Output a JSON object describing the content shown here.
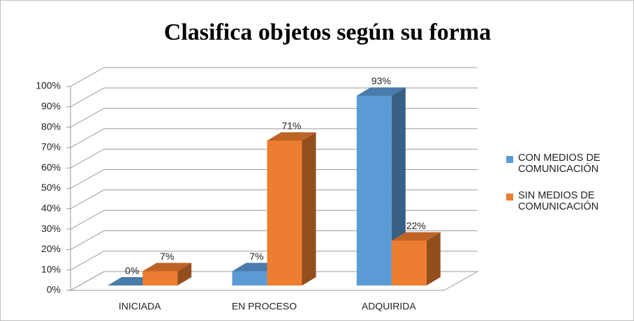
{
  "chart_data": {
    "type": "bar3d",
    "title": "Clasifica objetos según su forma",
    "categories": [
      "INICIADA",
      "EN PROCESO",
      "ADQUIRIDA"
    ],
    "series": [
      {
        "name": "CON MEDIOS DE COMUNICACIÓN",
        "color": "#5b9bd5",
        "values": [
          0,
          7,
          93
        ],
        "value_labels": [
          "0%",
          "7%",
          "93%"
        ]
      },
      {
        "name": "SIN MEDIOS DE COMUNICACIÓN",
        "color": "#ed7d31",
        "values": [
          7,
          71,
          22
        ],
        "value_labels": [
          "7%",
          "71%",
          "22%"
        ]
      }
    ],
    "ylim": [
      0,
      100
    ],
    "yticks": [
      {
        "value": 0,
        "label": "0%"
      },
      {
        "value": 10,
        "label": "10%"
      },
      {
        "value": 20,
        "label": "20%"
      },
      {
        "value": 30,
        "label": "30%"
      },
      {
        "value": 40,
        "label": "40%"
      },
      {
        "value": 50,
        "label": "50%"
      },
      {
        "value": 60,
        "label": "60%"
      },
      {
        "value": 70,
        "label": "70%"
      },
      {
        "value": 80,
        "label": "80%"
      },
      {
        "value": 90,
        "label": "90%"
      },
      {
        "value": 100,
        "label": "100%"
      }
    ],
    "grid": true,
    "legend": "right"
  }
}
